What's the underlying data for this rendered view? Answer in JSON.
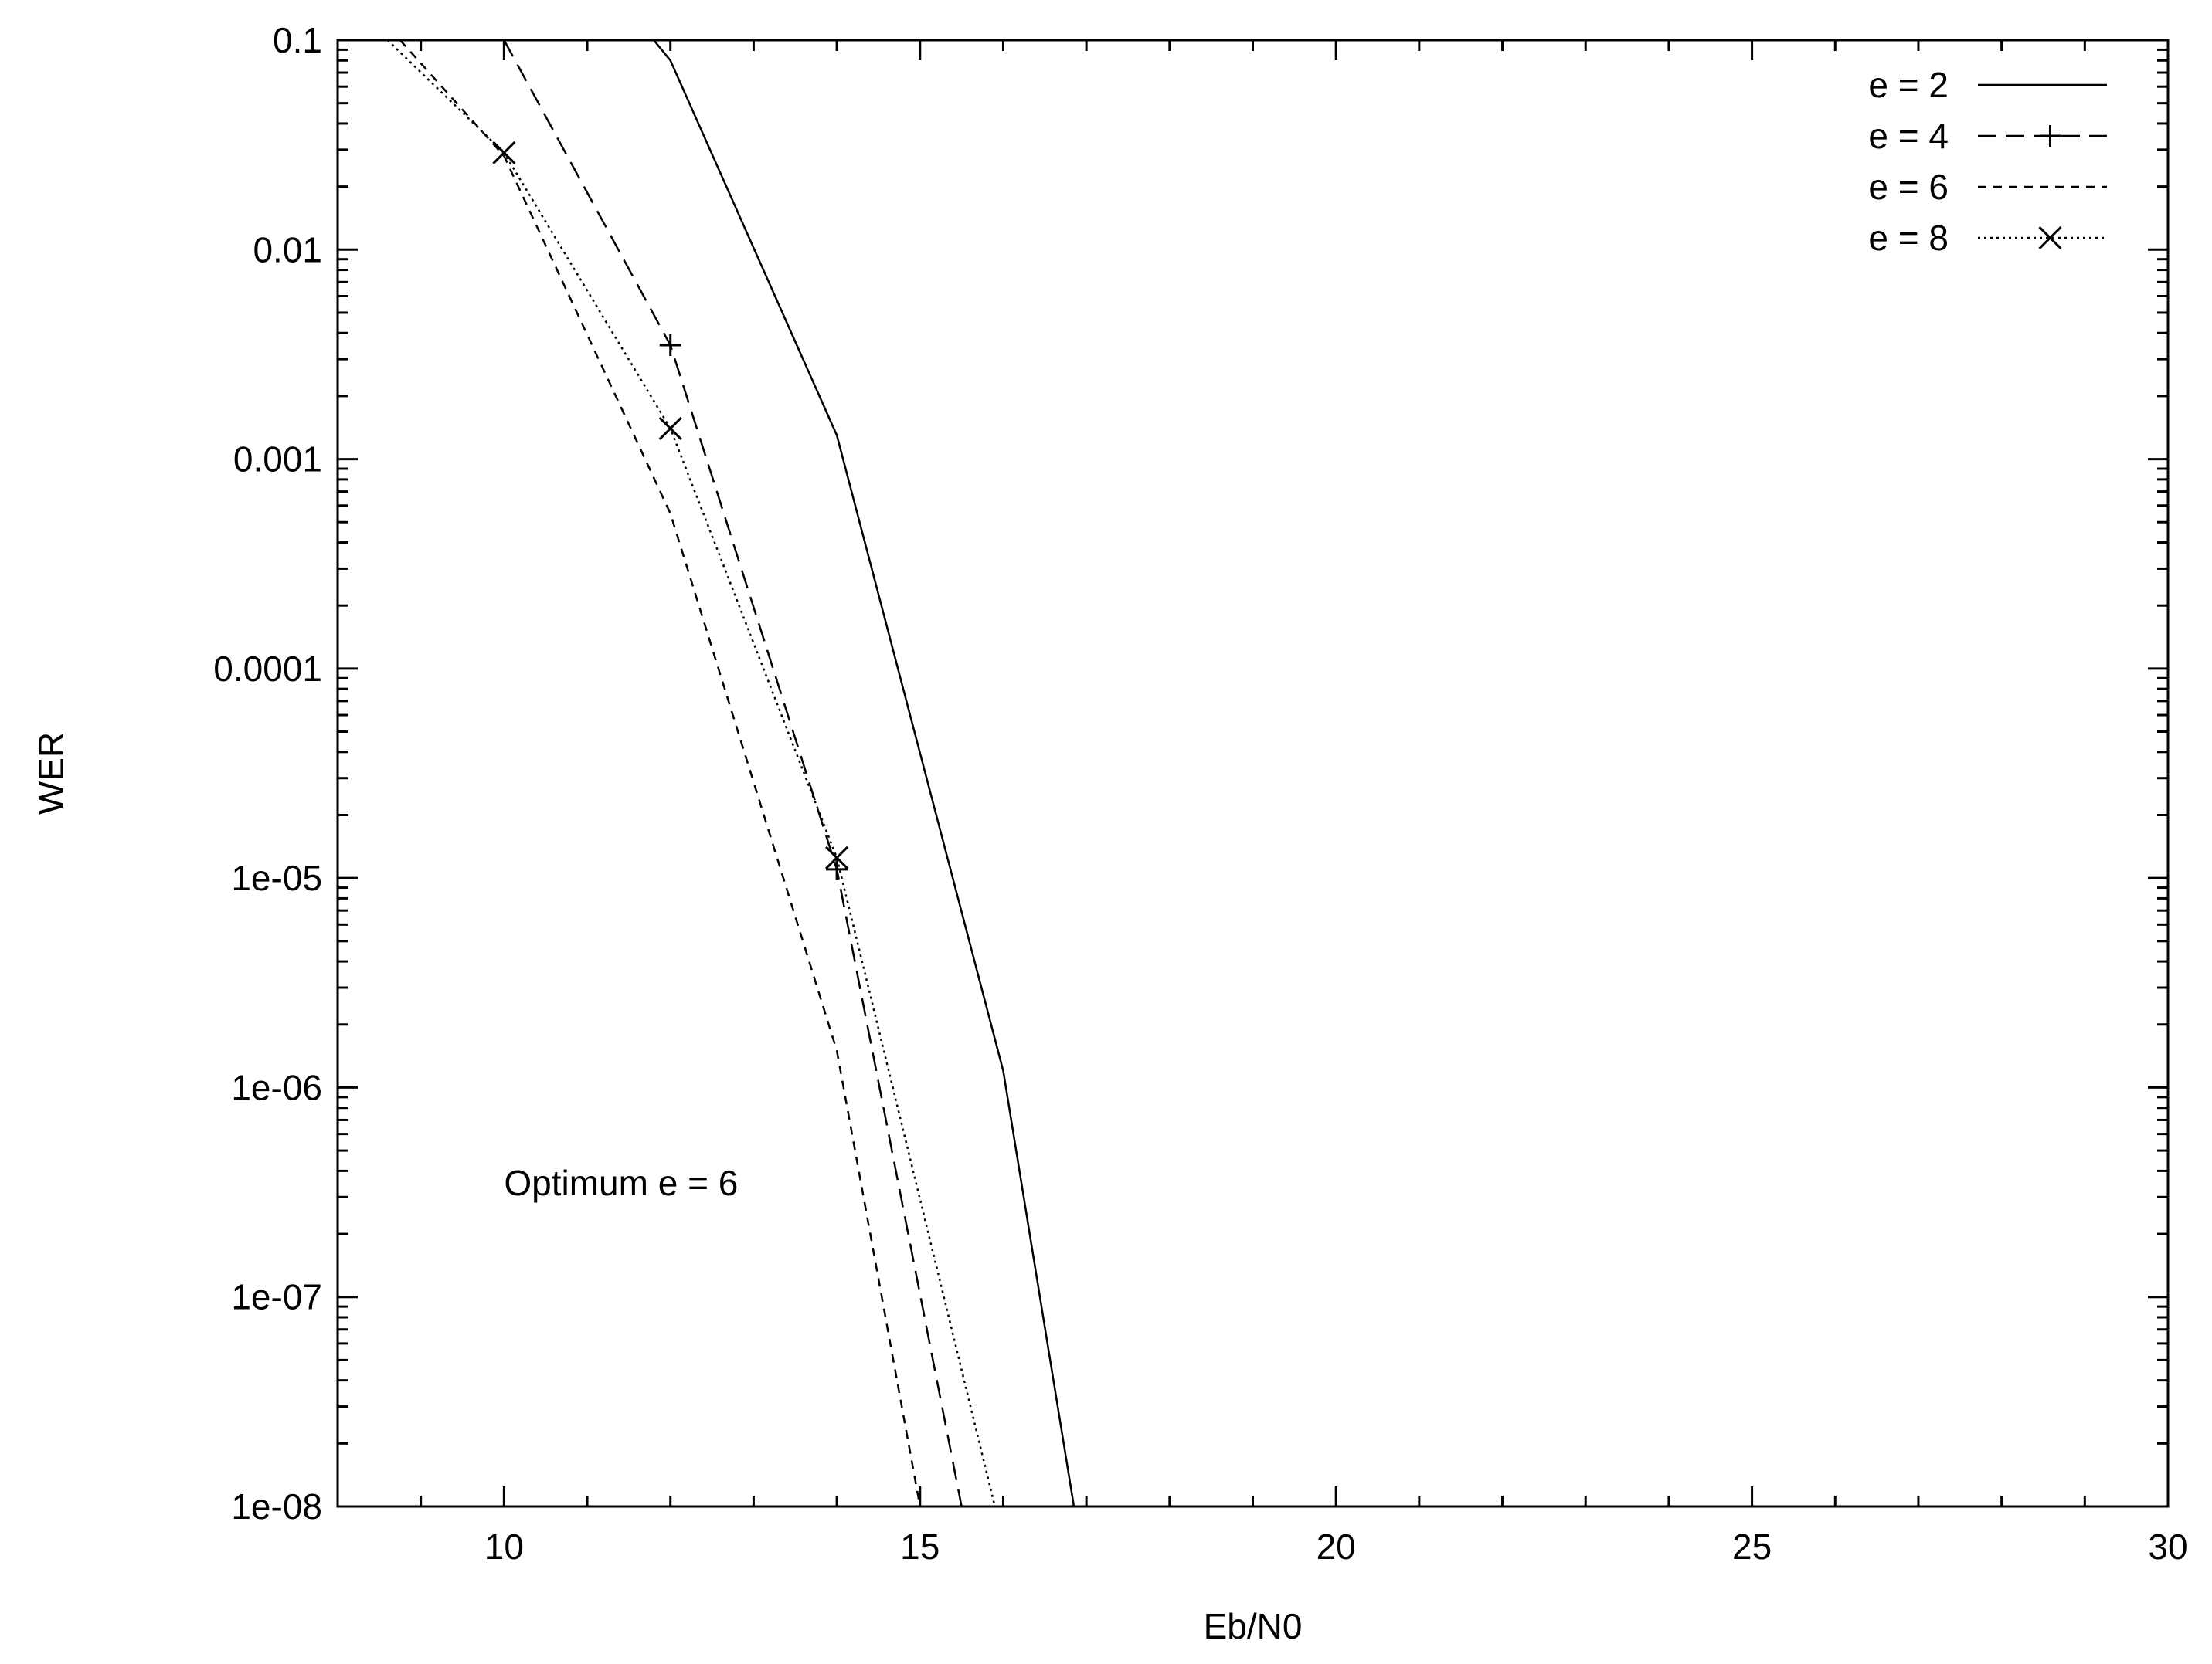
{
  "chart_data": {
    "type": "line",
    "title": "",
    "xlabel": "Eb/N0",
    "ylabel": "WER",
    "xlim": [
      8,
      30
    ],
    "ylim": [
      1e-08,
      0.1
    ],
    "yscale": "log",
    "grid": false,
    "legend_position": "top-right",
    "x_ticks": [
      10,
      15,
      20,
      25,
      30
    ],
    "x_tick_labels": [
      "10",
      "15",
      "20",
      "25",
      "30"
    ],
    "y_ticks": [
      0.1,
      0.01,
      0.001,
      0.0001,
      1e-05,
      1e-06,
      1e-07,
      1e-08
    ],
    "y_tick_labels": [
      "0.1",
      "0.01",
      "0.001",
      "0.0001",
      "1e-05",
      "1e-06",
      "1e-07",
      "1e-08"
    ],
    "annotation": {
      "text": "Optimum e = 6",
      "x": 10,
      "y": 3.5e-07
    },
    "series": [
      {
        "name": "e = 2",
        "line_style": "solid",
        "marker": "none",
        "x": [
          11.8,
          12,
          14,
          16,
          16.85
        ],
        "y": [
          0.1,
          0.08,
          0.0013,
          1.2e-06,
          1e-08
        ]
      },
      {
        "name": "e = 4",
        "line_style": "dashed",
        "marker": "plus",
        "x": [
          10,
          12,
          14,
          15.5
        ],
        "y": [
          0.1,
          0.0035,
          1.1e-05,
          1e-08
        ]
      },
      {
        "name": "e = 6",
        "line_style": "short-dashed",
        "marker": "none",
        "x": [
          8.75,
          10,
          12,
          14,
          15
        ],
        "y": [
          0.1,
          0.028,
          0.00055,
          1.5e-06,
          1e-08
        ]
      },
      {
        "name": "e = 8",
        "line_style": "dotted",
        "marker": "cross",
        "x": [
          8.6,
          10,
          12,
          14,
          15.9
        ],
        "y": [
          0.1,
          0.029,
          0.0014,
          1.25e-05,
          1e-08
        ]
      }
    ]
  }
}
